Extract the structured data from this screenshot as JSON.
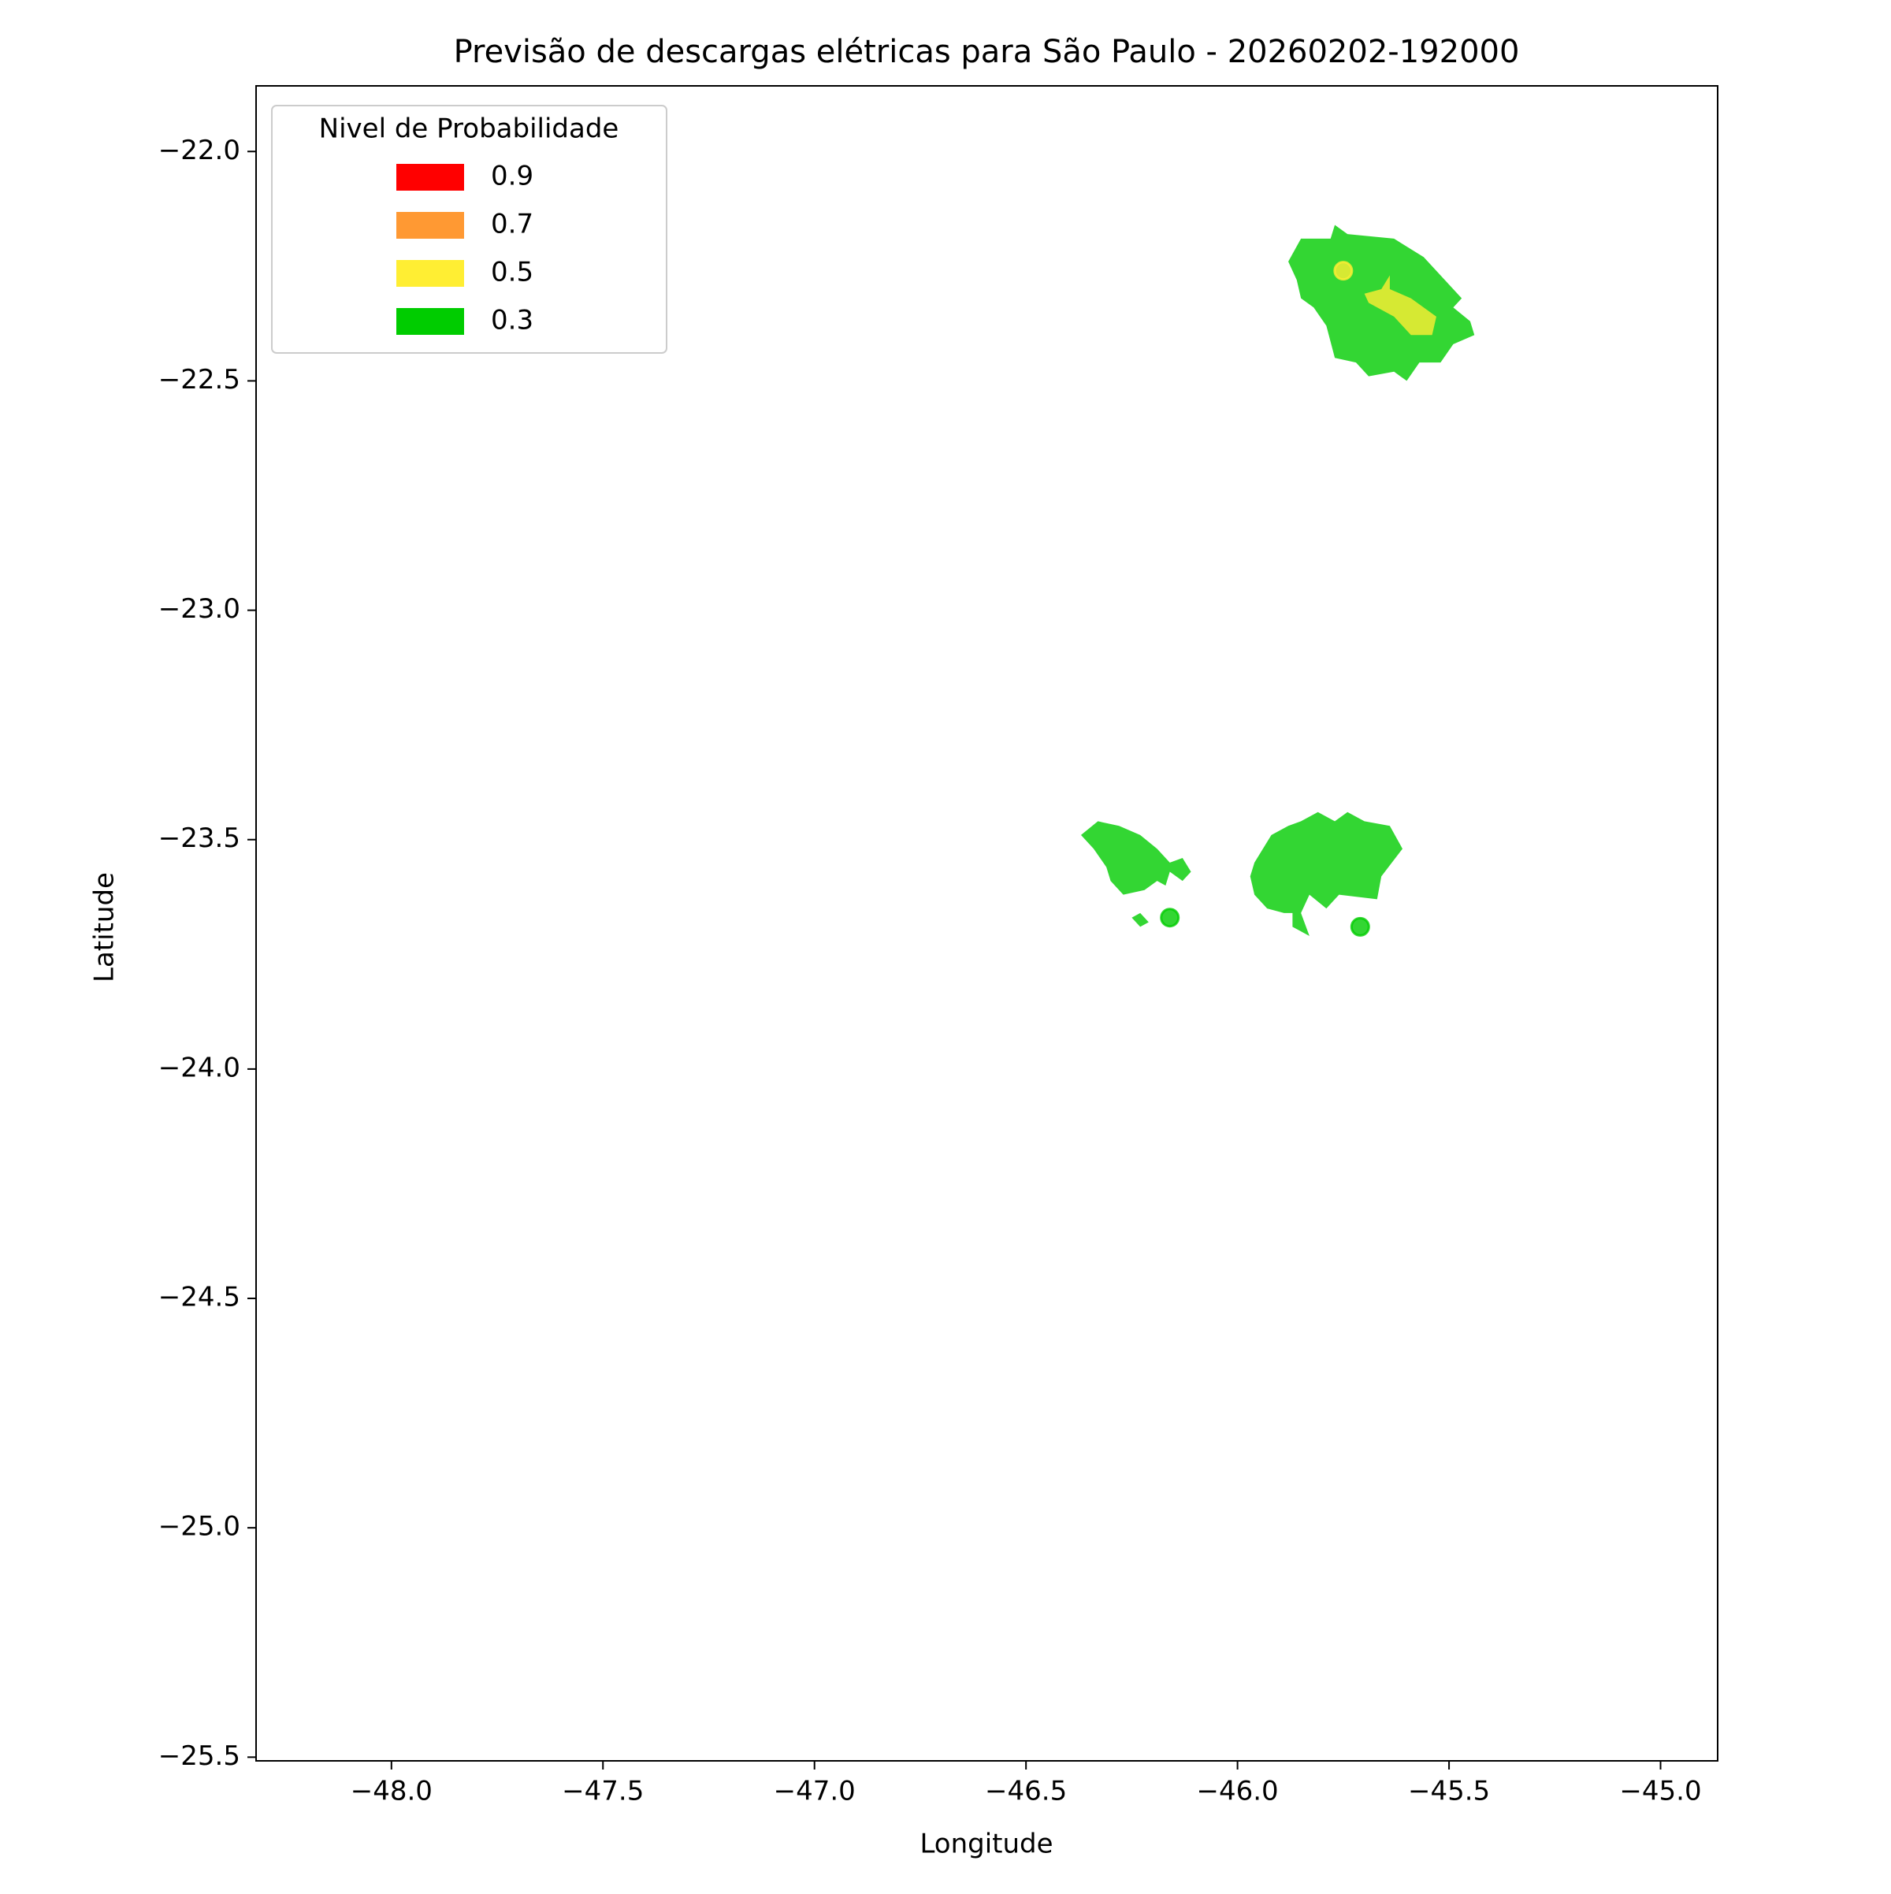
{
  "chart_data": {
    "type": "map",
    "title": "Previsão de descargas elétricas para São Paulo - 20260202-192000",
    "x_label": "Longitude",
    "y_label": "Latitude",
    "xlim": [
      -48.32,
      -44.865
    ],
    "ylim": [
      -25.508,
      -21.857
    ],
    "xticks": [
      {
        "value": -48.0,
        "label": "−48.0"
      },
      {
        "value": -47.5,
        "label": "−47.5"
      },
      {
        "value": -47.0,
        "label": "−47.0"
      },
      {
        "value": -46.5,
        "label": "−46.5"
      },
      {
        "value": -46.0,
        "label": "−46.0"
      },
      {
        "value": -45.5,
        "label": "−45.5"
      },
      {
        "value": -45.0,
        "label": "−45.0"
      }
    ],
    "yticks": [
      {
        "value": -22.0,
        "label": "−22.0"
      },
      {
        "value": -22.5,
        "label": "−22.5"
      },
      {
        "value": -23.0,
        "label": "−23.0"
      },
      {
        "value": -23.5,
        "label": "−23.5"
      },
      {
        "value": -24.0,
        "label": "−24.0"
      },
      {
        "value": -24.5,
        "label": "−24.5"
      },
      {
        "value": -25.0,
        "label": "−25.0"
      },
      {
        "value": -25.5,
        "label": "−25.5"
      }
    ],
    "legend": {
      "title": "Nivel de Probabilidade",
      "position": "upper left",
      "entries": [
        {
          "name": "0.9",
          "color": "#ff0000"
        },
        {
          "name": "0.7",
          "color": "#ff9933"
        },
        {
          "name": "0.5",
          "color": "#ffee33"
        },
        {
          "name": "0.3",
          "color": "#00cc00"
        }
      ]
    },
    "opacity": 0.8,
    "shapes": [
      {
        "level": 0.3,
        "polygon": [
          [
            -45.88,
            -22.24
          ],
          [
            -45.85,
            -22.19
          ],
          [
            -45.78,
            -22.19
          ],
          [
            -45.77,
            -22.16
          ],
          [
            -45.74,
            -22.18
          ],
          [
            -45.63,
            -22.19
          ],
          [
            -45.56,
            -22.23
          ],
          [
            -45.47,
            -22.32
          ],
          [
            -45.49,
            -22.34
          ],
          [
            -45.45,
            -22.37
          ],
          [
            -45.44,
            -22.4
          ],
          [
            -45.49,
            -22.42
          ],
          [
            -45.52,
            -22.46
          ],
          [
            -45.57,
            -22.46
          ],
          [
            -45.6,
            -22.5
          ],
          [
            -45.63,
            -22.48
          ],
          [
            -45.69,
            -22.49
          ],
          [
            -45.72,
            -22.46
          ],
          [
            -45.77,
            -22.45
          ],
          [
            -45.79,
            -22.38
          ],
          [
            -45.82,
            -22.34
          ],
          [
            -45.85,
            -22.32
          ],
          [
            -45.86,
            -22.28
          ]
        ]
      },
      {
        "level": 0.5,
        "polygon": [
          [
            -45.7,
            -22.31
          ],
          [
            -45.66,
            -22.3
          ],
          [
            -45.64,
            -22.27
          ],
          [
            -45.64,
            -22.3
          ],
          [
            -45.59,
            -22.32
          ],
          [
            -45.53,
            -22.36
          ],
          [
            -45.54,
            -22.4
          ],
          [
            -45.59,
            -22.4
          ],
          [
            -45.63,
            -22.36
          ],
          [
            -45.69,
            -22.33
          ]
        ]
      },
      {
        "level": 0.3,
        "polygon": [
          [
            -46.37,
            -23.49
          ],
          [
            -46.33,
            -23.46
          ],
          [
            -46.28,
            -23.47
          ],
          [
            -46.23,
            -23.49
          ],
          [
            -46.19,
            -23.52
          ],
          [
            -46.16,
            -23.55
          ],
          [
            -46.13,
            -23.54
          ],
          [
            -46.11,
            -23.57
          ],
          [
            -46.13,
            -23.59
          ],
          [
            -46.16,
            -23.57
          ],
          [
            -46.17,
            -23.6
          ],
          [
            -46.19,
            -23.59
          ],
          [
            -46.22,
            -23.61
          ],
          [
            -46.27,
            -23.62
          ],
          [
            -46.3,
            -23.59
          ],
          [
            -46.31,
            -23.56
          ],
          [
            -46.34,
            -23.52
          ]
        ]
      },
      {
        "level": 0.3,
        "polygon": [
          [
            -46.25,
            -23.67
          ],
          [
            -46.23,
            -23.66
          ],
          [
            -46.21,
            -23.68
          ],
          [
            -46.23,
            -23.69
          ]
        ]
      },
      {
        "level": 0.3,
        "polygon": [
          [
            -45.96,
            -23.55
          ],
          [
            -45.92,
            -23.49
          ],
          [
            -45.88,
            -23.47
          ],
          [
            -45.85,
            -23.46
          ],
          [
            -45.81,
            -23.44
          ],
          [
            -45.77,
            -23.46
          ],
          [
            -45.74,
            -23.44
          ],
          [
            -45.7,
            -23.46
          ],
          [
            -45.64,
            -23.47
          ],
          [
            -45.61,
            -23.52
          ],
          [
            -45.66,
            -23.58
          ],
          [
            -45.67,
            -23.63
          ],
          [
            -45.76,
            -23.62
          ],
          [
            -45.79,
            -23.65
          ],
          [
            -45.83,
            -23.62
          ],
          [
            -45.85,
            -23.66
          ],
          [
            -45.83,
            -23.71
          ],
          [
            -45.87,
            -23.69
          ],
          [
            -45.87,
            -23.66
          ],
          [
            -45.89,
            -23.66
          ],
          [
            -45.93,
            -23.65
          ],
          [
            -45.96,
            -23.62
          ],
          [
            -45.97,
            -23.58
          ]
        ]
      }
    ],
    "points": [
      {
        "level": 0.5,
        "lon": -45.75,
        "lat": -22.26
      },
      {
        "level": 0.3,
        "lon": -46.16,
        "lat": -23.67
      },
      {
        "level": 0.3,
        "lon": -45.71,
        "lat": -23.69
      }
    ]
  }
}
